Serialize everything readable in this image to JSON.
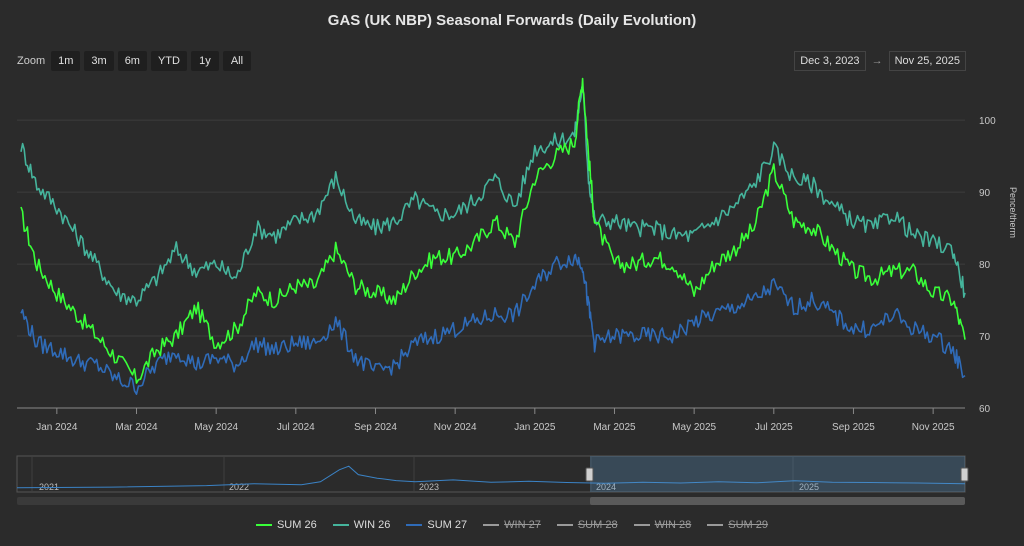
{
  "title": "GAS (UK NBP) Seasonal Forwards (Daily Evolution)",
  "zoom": {
    "label": "Zoom",
    "buttons": [
      "1m",
      "3m",
      "6m",
      "YTD",
      "1y",
      "All"
    ]
  },
  "range": {
    "from": "Dec 3, 2023",
    "arrow": "→",
    "to": "Nov 25, 2025"
  },
  "navigator_labels": [
    "2021",
    "2022",
    "2023",
    "2024",
    "2025"
  ],
  "colors": {
    "sum26": "#39ff39",
    "win26": "#45b49c",
    "sum27": "#2f6bb8",
    "grid": "#3d3d3d",
    "nav": "#3b83c6"
  },
  "legend": [
    {
      "label": "SUM 26",
      "active": true,
      "color": "#39ff39"
    },
    {
      "label": "WIN 26",
      "active": true,
      "color": "#45b49c"
    },
    {
      "label": "SUM 27",
      "active": true,
      "color": "#2f6bb8"
    },
    {
      "label": "WIN 27",
      "active": false,
      "color": "#9a9a9a"
    },
    {
      "label": "SUM 28",
      "active": false,
      "color": "#9a9a9a"
    },
    {
      "label": "WIN 28",
      "active": false,
      "color": "#9a9a9a"
    },
    {
      "label": "SUM 29",
      "active": false,
      "color": "#9a9a9a"
    }
  ],
  "chart_data": {
    "type": "line",
    "title": "GAS (UK NBP) Seasonal Forwards (Daily Evolution)",
    "ylabel": "Pence/therm",
    "ylim": [
      60,
      106
    ],
    "yticks": [
      60,
      70,
      80,
      90,
      100
    ],
    "xlim": [
      0,
      23.8
    ],
    "x_unit": "months since Dec 1, 2023",
    "xticks": [
      {
        "t": 1,
        "label": "Jan 2024"
      },
      {
        "t": 3,
        "label": "Mar 2024"
      },
      {
        "t": 5,
        "label": "May 2024"
      },
      {
        "t": 7,
        "label": "Jul 2024"
      },
      {
        "t": 9,
        "label": "Sep 2024"
      },
      {
        "t": 11,
        "label": "Nov 2024"
      },
      {
        "t": 13,
        "label": "Jan 2025"
      },
      {
        "t": 15,
        "label": "Mar 2025"
      },
      {
        "t": 17,
        "label": "May 2025"
      },
      {
        "t": 19,
        "label": "Jul 2025"
      },
      {
        "t": 21,
        "label": "Sep 2025"
      },
      {
        "t": 23,
        "label": "Nov 2025"
      }
    ],
    "x": [
      0.1,
      0.5,
      1,
      1.5,
      2,
      2.5,
      3,
      3.5,
      4,
      4.5,
      5,
      5.5,
      6,
      6.5,
      7,
      7.5,
      8,
      8.5,
      9,
      9.5,
      10,
      10.5,
      11,
      11.5,
      12,
      12.5,
      13,
      13.5,
      14,
      14.2,
      14.35,
      14.5,
      15,
      15.5,
      16,
      16.5,
      17,
      17.5,
      18,
      18.5,
      19,
      19.5,
      20,
      20.5,
      21,
      21.5,
      22,
      22.5,
      23,
      23.5,
      23.8
    ],
    "series": [
      {
        "name": "SUM 26",
        "color": "#39ff39",
        "values": [
          87,
          80,
          76,
          73,
          70,
          67,
          64,
          68,
          70,
          74,
          69,
          71,
          76,
          75,
          77,
          77,
          82,
          77,
          76,
          75,
          79,
          81,
          81,
          83,
          86,
          83,
          92,
          95,
          97,
          106,
          95,
          86,
          80,
          80,
          81,
          80,
          76,
          80,
          82,
          85,
          93,
          86,
          85,
          82,
          79,
          78,
          79,
          79,
          76,
          75,
          69.5
        ]
      },
      {
        "name": "WIN 26",
        "color": "#45b49c",
        "values": [
          96.5,
          91,
          88,
          84,
          80,
          76,
          75,
          78,
          82,
          79,
          80,
          78,
          85,
          84,
          86,
          87,
          92,
          86,
          85,
          86,
          89,
          87,
          87,
          89,
          92,
          88,
          96,
          97,
          98,
          105,
          92,
          86,
          86,
          85,
          85,
          84,
          84,
          86,
          88,
          91,
          96,
          92,
          91,
          88,
          86,
          85,
          87,
          84,
          83,
          82,
          76
        ]
      },
      {
        "name": "SUM 27",
        "color": "#2f6bb8",
        "values": [
          73.5,
          69,
          68,
          66.5,
          66,
          64,
          63,
          66,
          68,
          66,
          67,
          66,
          69,
          68,
          69,
          69,
          72,
          67,
          65,
          66,
          69,
          70,
          71,
          72,
          73,
          73,
          77,
          80,
          81,
          80,
          74,
          69,
          70,
          70,
          70,
          70,
          72,
          73,
          74,
          75,
          77,
          74,
          75,
          73,
          71,
          71,
          73,
          71,
          70,
          68,
          64.5
        ]
      }
    ],
    "navigator": {
      "xlabels": [
        "2021",
        "2022",
        "2023",
        "2024",
        "2025"
      ],
      "selected": [
        "Dec 3, 2023",
        "Nov 25, 2025"
      ]
    }
  }
}
